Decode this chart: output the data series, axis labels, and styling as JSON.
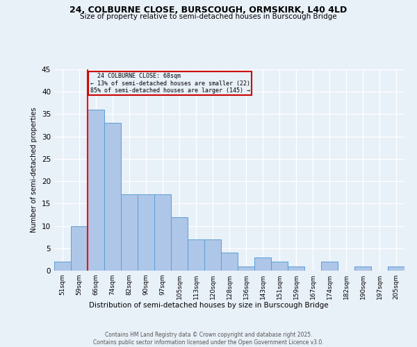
{
  "title": "24, COLBURNE CLOSE, BURSCOUGH, ORMSKIRK, L40 4LD",
  "subtitle": "Size of property relative to semi-detached houses in Burscough Bridge",
  "xlabel": "Distribution of semi-detached houses by size in Burscough Bridge",
  "ylabel": "Number of semi-detached properties",
  "footnote": "Contains HM Land Registry data © Crown copyright and database right 2025.\nContains public sector information licensed under the Open Government Licence v3.0.",
  "bins": [
    "51sqm",
    "59sqm",
    "66sqm",
    "74sqm",
    "82sqm",
    "90sqm",
    "97sqm",
    "105sqm",
    "113sqm",
    "120sqm",
    "128sqm",
    "136sqm",
    "143sqm",
    "151sqm",
    "159sqm",
    "167sqm",
    "174sqm",
    "182sqm",
    "190sqm",
    "197sqm",
    "205sqm"
  ],
  "values": [
    2,
    10,
    36,
    33,
    17,
    17,
    17,
    12,
    7,
    7,
    4,
    1,
    3,
    2,
    1,
    0,
    2,
    0,
    1,
    0,
    1
  ],
  "bar_color": "#aec6e8",
  "bar_edge_color": "#5a9fd4",
  "bg_color": "#e8f0f8",
  "grid_color": "#ffffff",
  "property_line_bin": 2,
  "property_label": "24 COLBURNE CLOSE: 68sqm",
  "smaller_pct": "13%",
  "smaller_n": 22,
  "larger_pct": "85%",
  "larger_n": 145,
  "annotation_box_color": "#cc0000",
  "ylim": [
    0,
    45
  ],
  "yticks": [
    0,
    5,
    10,
    15,
    20,
    25,
    30,
    35,
    40,
    45
  ]
}
